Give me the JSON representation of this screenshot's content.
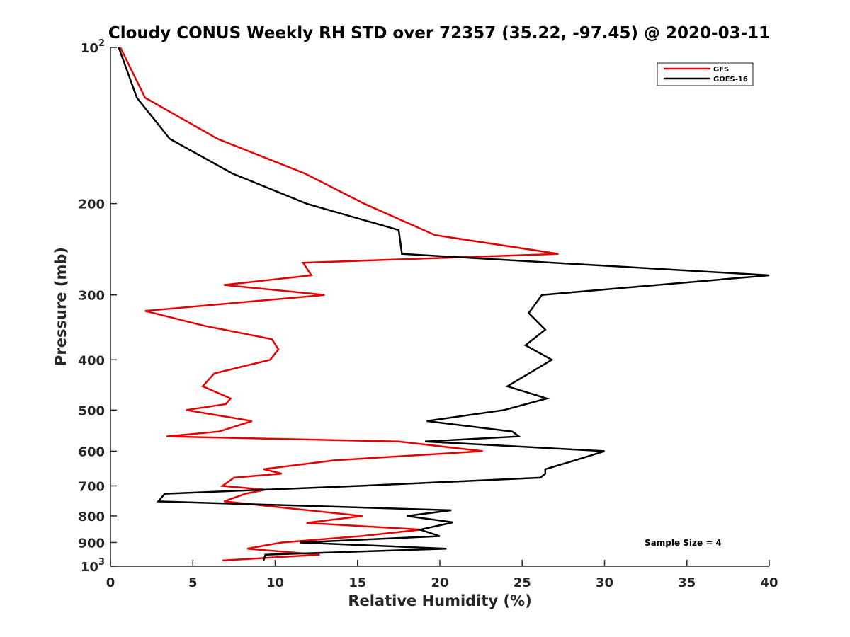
{
  "chart_data": {
    "type": "line",
    "title": "Cloudy CONUS Weekly RH STD over 72357 (35.22, -97.45) @ 2020-03-11",
    "xlabel": "Relative Humidity (%)",
    "ylabel": "Pressure (mb)",
    "xlim": [
      0,
      40
    ],
    "ylim": [
      100,
      1000
    ],
    "y_scale": "log",
    "y_reversed": true,
    "grid": false,
    "legend_position": "top-right",
    "x_ticks": [
      0,
      5,
      10,
      15,
      20,
      25,
      30,
      35,
      40
    ],
    "x_tick_labels": [
      "0",
      "5",
      "10",
      "15",
      "20",
      "25",
      "30",
      "35",
      "40"
    ],
    "y_ticks": [
      100,
      200,
      300,
      400,
      500,
      600,
      700,
      800,
      900,
      1000
    ],
    "y_tick_labels": [
      {
        "base": "10",
        "exp": "2"
      },
      {
        "base": "200",
        "exp": ""
      },
      {
        "base": "300",
        "exp": ""
      },
      {
        "base": "400",
        "exp": ""
      },
      {
        "base": "500",
        "exp": ""
      },
      {
        "base": "600",
        "exp": ""
      },
      {
        "base": "700",
        "exp": ""
      },
      {
        "base": "800",
        "exp": ""
      },
      {
        "base": "900",
        "exp": ""
      },
      {
        "base": "10",
        "exp": "3"
      }
    ],
    "series": [
      {
        "name": "GFS",
        "color": "#e60000",
        "points": [
          [
            0.6,
            100
          ],
          [
            2.1,
            125
          ],
          [
            6.5,
            150
          ],
          [
            11.8,
            175
          ],
          [
            15.4,
            200
          ],
          [
            19.7,
            230
          ],
          [
            27.2,
            250
          ],
          [
            11.7,
            260
          ],
          [
            12.2,
            275
          ],
          [
            6.9,
            287
          ],
          [
            13,
            300
          ],
          [
            2.1,
            322
          ],
          [
            5.7,
            344
          ],
          [
            9.8,
            365
          ],
          [
            10.2,
            382
          ],
          [
            9.7,
            400
          ],
          [
            6.3,
            425
          ],
          [
            5.6,
            450
          ],
          [
            7.3,
            475
          ],
          [
            7,
            487
          ],
          [
            4.6,
            500
          ],
          [
            8.6,
            525
          ],
          [
            6.6,
            550
          ],
          [
            3.4,
            562
          ],
          [
            17.5,
            575
          ],
          [
            22.6,
            600
          ],
          [
            13.6,
            625
          ],
          [
            9.3,
            650
          ],
          [
            10.4,
            663
          ],
          [
            7.5,
            675
          ],
          [
            6.8,
            700
          ],
          [
            9.4,
            712
          ],
          [
            8.2,
            725
          ],
          [
            6.9,
            750
          ],
          [
            15.3,
            800
          ],
          [
            11.9,
            825
          ],
          [
            18.9,
            850
          ],
          [
            15.2,
            875
          ],
          [
            10.4,
            900
          ],
          [
            8.3,
            925
          ],
          [
            12.7,
            950
          ],
          [
            6.8,
            975
          ]
        ]
      },
      {
        "name": "GOES-16",
        "color": "#000000",
        "points": [
          [
            0.5,
            100
          ],
          [
            1.6,
            125
          ],
          [
            3.6,
            150
          ],
          [
            7.4,
            175
          ],
          [
            11.9,
            200
          ],
          [
            17.5,
            225
          ],
          [
            17.7,
            250
          ],
          [
            40,
            275
          ],
          [
            26.2,
            300
          ],
          [
            25.4,
            325
          ],
          [
            26.4,
            350
          ],
          [
            25.2,
            375
          ],
          [
            26.8,
            400
          ],
          [
            24.1,
            450
          ],
          [
            26.5,
            475
          ],
          [
            23.9,
            500
          ],
          [
            19.2,
            525
          ],
          [
            24.4,
            550
          ],
          [
            24.8,
            562
          ],
          [
            19.1,
            575
          ],
          [
            30,
            600
          ],
          [
            28.2,
            625
          ],
          [
            26.4,
            650
          ],
          [
            26.4,
            663
          ],
          [
            26.1,
            675
          ],
          [
            15.1,
            700
          ],
          [
            3.3,
            725
          ],
          [
            2.9,
            750
          ],
          [
            20.7,
            780
          ],
          [
            18,
            800
          ],
          [
            20.8,
            823
          ],
          [
            18.8,
            850
          ],
          [
            20,
            875
          ],
          [
            11.5,
            900
          ],
          [
            20.4,
            925
          ],
          [
            9.4,
            950
          ],
          [
            9.3,
            975
          ]
        ]
      }
    ],
    "legend": [
      "GFS",
      "GOES-16"
    ],
    "annotation": "Sample Size = 4"
  }
}
